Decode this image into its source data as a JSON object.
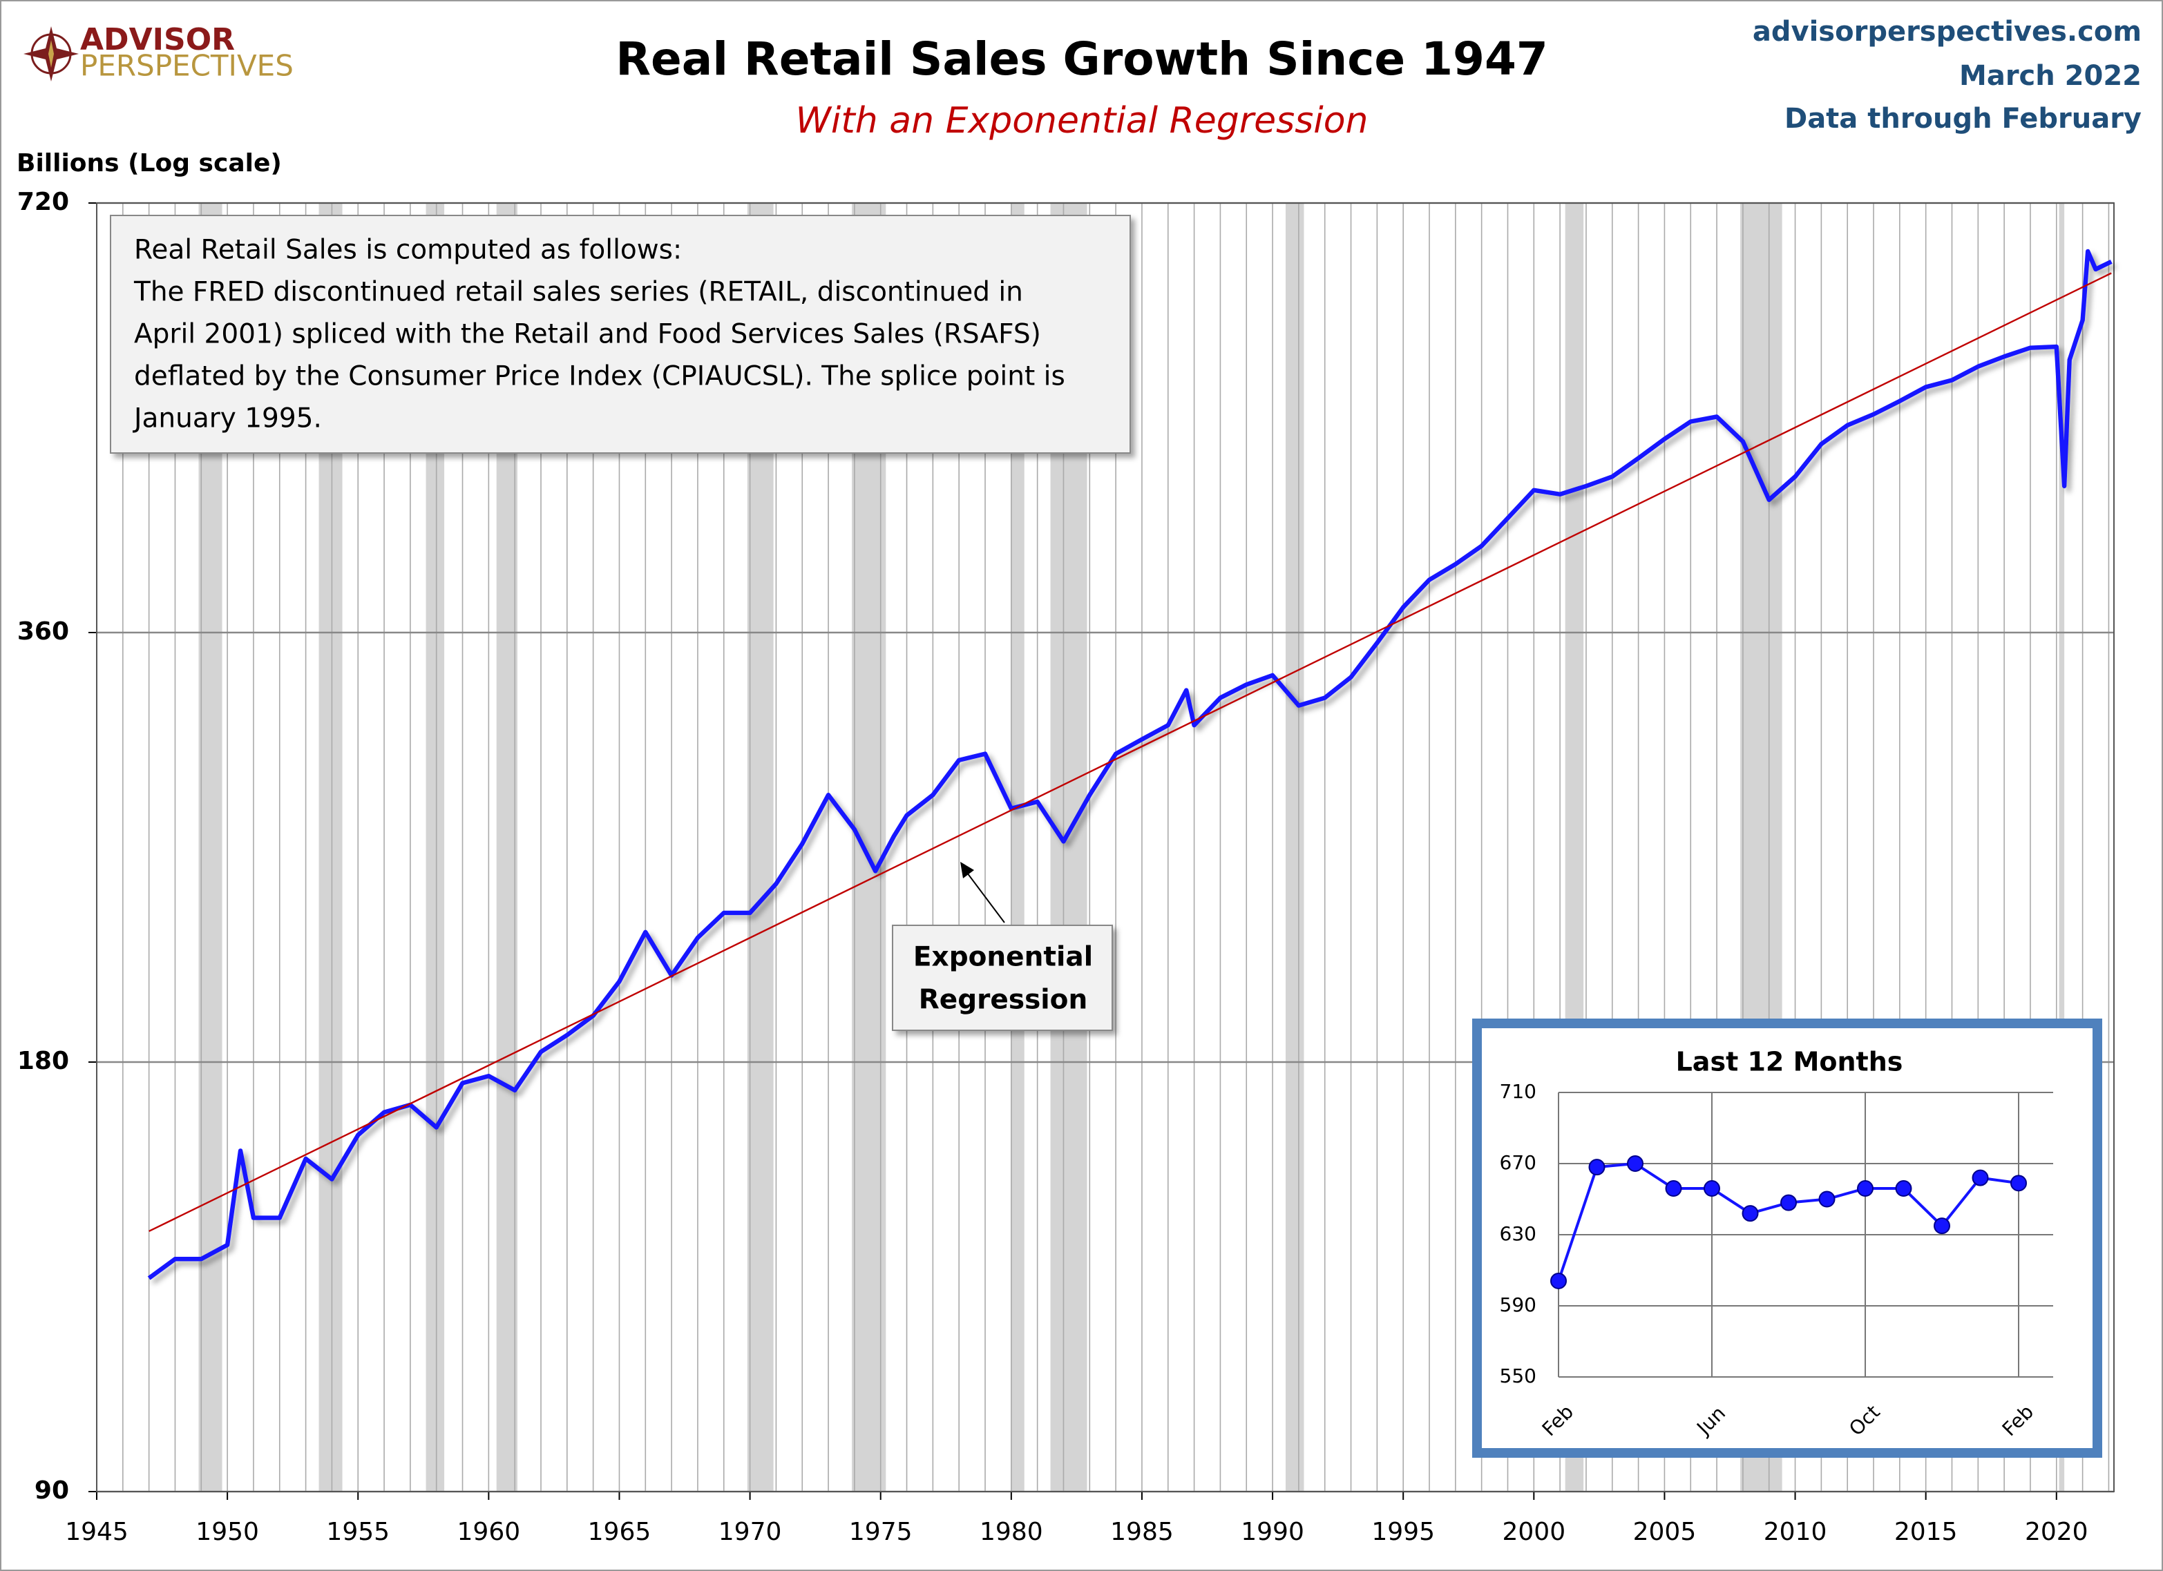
{
  "header": {
    "logo_top": "ADVISOR",
    "logo_bottom": "PERSPECTIVES",
    "source": [
      "advisorperspectives.com",
      "March 2022",
      "Data through February"
    ]
  },
  "chart_data": [
    {
      "type": "line",
      "title": "Real Retail Sales Growth Since 1947",
      "subtitle": "With an Exponential Regression",
      "y_label": "Billions (Log scale)",
      "log_scale": true,
      "grid": true,
      "x_minor_grid": 1,
      "xlim": [
        1945,
        2022.2
      ],
      "xticks": [
        1945,
        1950,
        1955,
        1960,
        1965,
        1970,
        1975,
        1980,
        1985,
        1990,
        1995,
        2000,
        2005,
        2010,
        2015,
        2020
      ],
      "ylim": [
        90,
        720
      ],
      "yticks": [
        90,
        180,
        360,
        720
      ],
      "recessions": [
        [
          1948.9,
          1949.8
        ],
        [
          1953.5,
          1954.4
        ],
        [
          1957.6,
          1958.3
        ],
        [
          1960.3,
          1961.1
        ],
        [
          1969.9,
          1970.9
        ],
        [
          1973.9,
          1975.2
        ],
        [
          1980.0,
          1980.5
        ],
        [
          1981.5,
          1982.9
        ],
        [
          1990.5,
          1991.2
        ],
        [
          2001.2,
          2001.9
        ],
        [
          2007.9,
          2009.5
        ],
        [
          2020.1,
          2020.3
        ]
      ],
      "series": [
        {
          "name": "Real Retail Sales",
          "color": "#1414ff",
          "x": [
            1947,
            1948,
            1949,
            1950,
            1950.5,
            1951,
            1952,
            1953,
            1954,
            1955,
            1956,
            1957,
            1958,
            1959,
            1960,
            1961,
            1962,
            1963,
            1964,
            1965,
            1966,
            1967,
            1968,
            1969,
            1970,
            1971,
            1972,
            1973,
            1974,
            1974.8,
            1975.5,
            1976,
            1977,
            1978,
            1979,
            1980,
            1981,
            1982,
            1983,
            1984,
            1985,
            1986,
            1986.7,
            1987,
            1988,
            1989,
            1990,
            1991,
            1992,
            1993,
            1994,
            1995,
            1996,
            1997,
            1998,
            1999,
            2000,
            2001,
            2002,
            2003,
            2004,
            2005,
            2006,
            2007,
            2008,
            2009,
            2010,
            2011,
            2012,
            2013,
            2014,
            2015,
            2016,
            2017,
            2018,
            2019,
            2020,
            2020.3,
            2020.5,
            2021,
            2021.2,
            2021.5,
            2022.1
          ],
          "values": [
            127,
            131,
            131,
            134,
            156,
            140,
            140,
            154,
            149,
            160,
            166,
            168,
            162,
            174,
            176,
            172,
            183,
            188,
            194,
            205,
            222,
            207,
            220,
            229,
            229,
            240,
            256,
            277,
            262,
            245,
            259,
            268,
            277,
            293,
            296,
            271,
            274,
            257,
            277,
            296,
            303,
            310,
            328,
            310,
            324,
            331,
            336,
            320,
            324,
            335,
            354,
            375,
            392,
            402,
            414,
            433,
            453,
            450,
            456,
            463,
            477,
            492,
            506,
            510,
            490,
            446,
            463,
            488,
            503,
            512,
            523,
            535,
            541,
            553,
            562,
            570,
            571,
            456,
            559,
            596,
            666,
            647,
            655
          ]
        },
        {
          "name": "Exponential Regression",
          "color": "#c00000",
          "x": [
            1947,
            2022.1
          ],
          "values": [
            137,
            643
          ]
        }
      ],
      "annotation_lines": [
        "Real Retail Sales is computed as follows:",
        "The FRED discontinued retail sales series (RETAIL, discontinued in",
        "April 2001) spliced with the Retail and Food Services Sales (RSAFS)",
        "deflated by the Consumer Price Index (CPIAUCSL). The splice point is",
        "January 1995."
      ],
      "callout_lines": [
        "Exponential",
        "Regression"
      ]
    },
    {
      "type": "line",
      "title": "Last 12 Months",
      "grid": true,
      "categories": [
        "Feb",
        null,
        null,
        null,
        "Jun",
        null,
        null,
        null,
        "Oct",
        null,
        null,
        null,
        "Feb"
      ],
      "values": [
        604,
        668,
        670,
        656,
        656,
        642,
        648,
        650,
        656,
        656,
        635,
        662,
        659
      ],
      "color": "#1414ff",
      "ylim": [
        550,
        710
      ],
      "yticks": [
        550,
        590,
        630,
        670,
        710
      ]
    }
  ]
}
